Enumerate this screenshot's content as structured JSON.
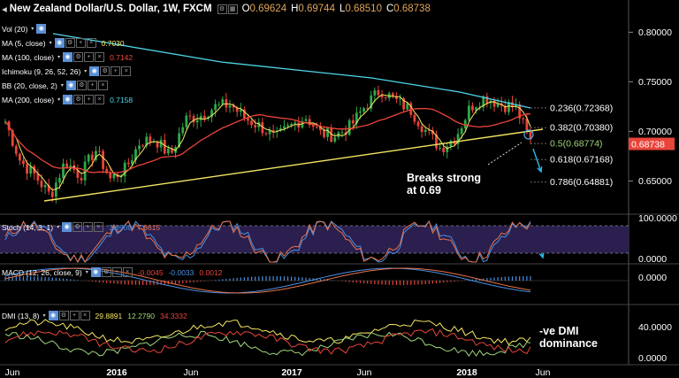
{
  "title": {
    "symbol_label": "New Zealand Dollar/U.S. Dollar, 1W, FXCM",
    "o_label": "O",
    "o": "0.69624",
    "h_label": "H",
    "h": "0.69744",
    "l_label": "L",
    "l": "0.68510",
    "c_label": "C",
    "c": "0.68738"
  },
  "indicators": [
    {
      "label": "Vol (20)",
      "value": "",
      "color": "#ffffff"
    },
    {
      "label": "MA (5, close)",
      "value": "0.7030",
      "color": "#f5e663"
    },
    {
      "label": "MA (100, close)",
      "value": "0.7142",
      "color": "#f04a3a"
    },
    {
      "label": "Ichimoku (9, 26, 52, 26)",
      "value": "",
      "color": "#ffffff"
    },
    {
      "label": "BB (20, close, 2)",
      "value": "",
      "color": "#ffffff"
    },
    {
      "label": "MA (200, close)",
      "value": "0.7158",
      "color": "#4fd6e8"
    }
  ],
  "sub_legends": {
    "stoch": {
      "label": "Stoch (14, 3, 1)",
      "v1": "3.8908",
      "v2": "7.8615",
      "c1": "#4a90e2",
      "c2": "#e8734a"
    },
    "macd": {
      "label": "MACD (12, 26, close, 9)",
      "v1": "-0.0045",
      "v2": "-0.0033",
      "v3": "0.0012",
      "c1": "#e8443a",
      "c2": "#4a90e2",
      "c3": "#e8443a"
    },
    "dmi": {
      "label": "DMI (13, 8)",
      "v1": "29.8891",
      "v2": "12.2790",
      "v3": "34.3332",
      "c1": "#f5e663",
      "c2": "#9fd67a",
      "c3": "#e8443a"
    }
  },
  "price_axis": {
    "ticks": [
      "0.80000",
      "0.75000",
      "0.70000",
      "0.65000"
    ],
    "last_price": "0.68738",
    "last_color": "#e8443a"
  },
  "stoch_axis": [
    "100.0000",
    "0.0000"
  ],
  "macd_axis": [
    "0.0000"
  ],
  "dmi_axis": [
    "40.0000",
    "0.0000"
  ],
  "time_axis": [
    "Jun",
    "2016",
    "Jun",
    "2017",
    "Jun",
    "2018",
    "Jun"
  ],
  "fib_levels": [
    {
      "label": "0.236(0.72368)",
      "color": "#ffffff"
    },
    {
      "label": "0.382(0.70380)",
      "color": "#ffffff"
    },
    {
      "label": "0.5(0.68774)",
      "color": "#9fd67a"
    },
    {
      "label": "0.618(0.67168)",
      "color": "#ffffff"
    },
    {
      "label": "0.786(0.64881)",
      "color": "#ffffff"
    }
  ],
  "annotations": {
    "breaks_line1": "Breaks strong",
    "breaks_line2": "at 0.69",
    "dmi_line1": "-ve DMI",
    "dmi_line2": "dominance"
  },
  "colors": {
    "background": "#000000",
    "up": "#2ea84a",
    "down": "#e8443a",
    "ma5": "#f5e663",
    "ma100": "#e8443a",
    "ma200": "#4fd6e8",
    "trendline": "#f5e663",
    "stoch_band": "#2a1f4e",
    "arrow": "#2ab8e6"
  },
  "chart_data": [
    {
      "type": "candlestick",
      "title": "New Zealand Dollar/U.S. Dollar, 1W, FXCM",
      "x": [
        "2015-06",
        "2015-07",
        "2015-08",
        "2015-09",
        "2015-10",
        "2015-11",
        "2015-12",
        "2016-01",
        "2016-02",
        "2016-03",
        "2016-04",
        "2016-05",
        "2016-06",
        "2016-07",
        "2016-08",
        "2016-09",
        "2016-10",
        "2016-11",
        "2016-12",
        "2017-01",
        "2017-02",
        "2017-03",
        "2017-04",
        "2017-05",
        "2017-06",
        "2017-07",
        "2017-08",
        "2017-09",
        "2017-10",
        "2017-11",
        "2017-12",
        "2018-01",
        "2018-02",
        "2018-03",
        "2018-04",
        "2018-05"
      ],
      "close": [
        0.71,
        0.67,
        0.655,
        0.635,
        0.67,
        0.655,
        0.682,
        0.652,
        0.662,
        0.69,
        0.692,
        0.675,
        0.712,
        0.716,
        0.725,
        0.727,
        0.713,
        0.705,
        0.693,
        0.705,
        0.715,
        0.698,
        0.696,
        0.705,
        0.726,
        0.742,
        0.731,
        0.722,
        0.701,
        0.683,
        0.694,
        0.725,
        0.735,
        0.727,
        0.725,
        0.69
      ],
      "ylim": [
        0.62,
        0.82
      ],
      "ma_values": {
        "MA (5, close)": 0.703,
        "MA (100, close)": 0.7142,
        "MA (200, close)": 0.7158
      },
      "fib_levels": [
        0.72368,
        0.7038,
        0.68774,
        0.67168,
        0.64881
      ],
      "last_price": 0.68738
    },
    {
      "type": "line",
      "title": "Stoch (14, 3, 1)",
      "series": [
        {
          "name": "%K",
          "last": 3.8908
        },
        {
          "name": "%D",
          "last": 7.8615
        }
      ],
      "ylim": [
        0,
        100
      ]
    },
    {
      "type": "line",
      "title": "MACD (12, 26, close, 9)",
      "series": [
        {
          "name": "MACD",
          "last": -0.0045
        },
        {
          "name": "Signal",
          "last": -0.0033
        },
        {
          "name": "Histogram",
          "last": 0.0012
        }
      ]
    },
    {
      "type": "line",
      "title": "DMI (13, 8)",
      "series": [
        {
          "name": "ADX",
          "last": 29.8891
        },
        {
          "name": "+DI",
          "last": 12.279
        },
        {
          "name": "-DI",
          "last": 34.3332
        }
      ],
      "ylim": [
        0,
        50
      ]
    }
  ]
}
